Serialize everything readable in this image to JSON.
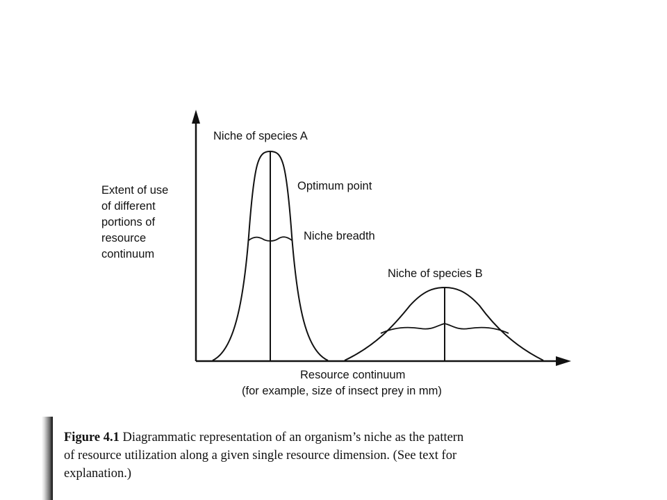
{
  "diagram": {
    "species_a_label": "Niche of species A",
    "optimum_label": "Optimum point",
    "breadth_label": "Niche breadth",
    "species_b_label": "Niche of species B",
    "y_axis_label": [
      "Extent of use",
      "of different",
      "portions of",
      "resource",
      "continuum"
    ],
    "x_axis_label": "Resource continuum",
    "x_axis_sublabel": "(for example, size of insect prey in mm)"
  },
  "caption": {
    "figure_number": "Figure 4.1",
    "lines": [
      "Diagrammatic representation of an organism’s niche as the pattern",
      "of resource utilization along a given single resource dimension. (See text for",
      "explanation.)"
    ]
  }
}
